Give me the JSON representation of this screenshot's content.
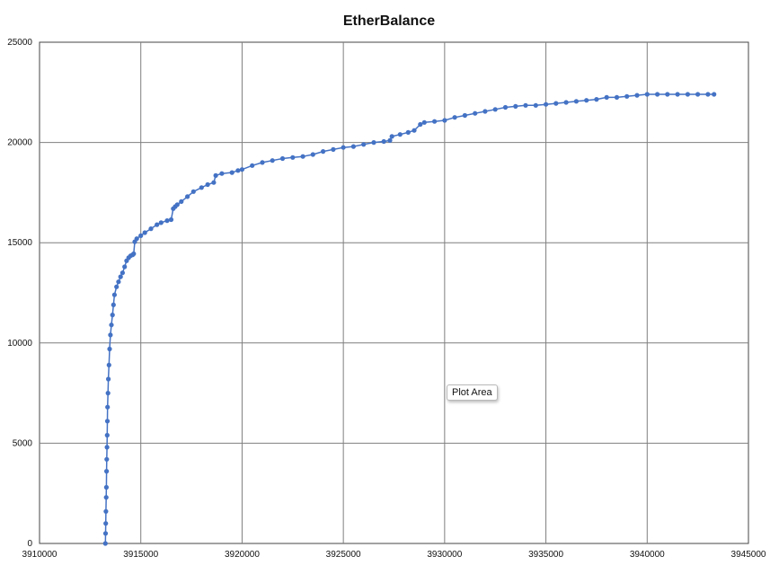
{
  "chart_data": {
    "type": "line",
    "title": "EtherBalance",
    "xlabel": "",
    "ylabel": "",
    "xlim": [
      3910000,
      3945000
    ],
    "ylim": [
      0,
      25000
    ],
    "x_ticks": [
      3910000,
      3915000,
      3920000,
      3925000,
      3930000,
      3935000,
      3940000,
      3945000
    ],
    "y_ticks": [
      0,
      5000,
      10000,
      15000,
      20000,
      25000
    ],
    "x_tick_labels": [
      "3910000",
      "3915000",
      "3920000",
      "3925000",
      "3930000",
      "3935000",
      "3940000",
      "3945000"
    ],
    "y_tick_labels": [
      "0",
      "5000",
      "10000",
      "15000",
      "20000",
      "25000"
    ],
    "grid": true,
    "legend": "none",
    "series_color": "#4472C4",
    "series": [
      {
        "x": [
          3913250,
          3913260,
          3913270,
          3913280,
          3913290,
          3913300,
          3913310,
          3913320,
          3913330,
          3913340,
          3913350,
          3913360,
          3913380,
          3913400,
          3913430,
          3913460,
          3913500,
          3913550,
          3913600,
          3913650,
          3913700,
          3913800,
          3913900,
          3914000,
          3914100,
          3914200,
          3914300,
          3914400,
          3914500,
          3914600,
          3914650,
          3914700,
          3914800,
          3915000,
          3915200,
          3915500,
          3915800,
          3916000,
          3916300,
          3916500,
          3916600,
          3916700,
          3916800,
          3917000,
          3917300,
          3917600,
          3918000,
          3918300,
          3918600,
          3918700,
          3919000,
          3919500,
          3919800,
          3920000,
          3920500,
          3921000,
          3921500,
          3922000,
          3922500,
          3923000,
          3923500,
          3924000,
          3924500,
          3925000,
          3925500,
          3926000,
          3926500,
          3927000,
          3927300,
          3927400,
          3927800,
          3928200,
          3928500,
          3928800,
          3929000,
          3929500,
          3930000,
          3930500,
          3931000,
          3931500,
          3932000,
          3932500,
          3933000,
          3933500,
          3934000,
          3934500,
          3935000,
          3935500,
          3936000,
          3936500,
          3937000,
          3937500,
          3938000,
          3938500,
          3939000,
          3939500,
          3940000,
          3940500,
          3941000,
          3941500,
          3942000,
          3942500,
          3943000,
          3943300
        ],
        "y": [
          0,
          500,
          1000,
          1600,
          2300,
          2800,
          3600,
          4200,
          4800,
          5400,
          6100,
          6800,
          7500,
          8200,
          8900,
          9700,
          10400,
          10900,
          11400,
          11900,
          12400,
          12800,
          13050,
          13300,
          13500,
          13800,
          14100,
          14250,
          14350,
          14400,
          14450,
          15050,
          15200,
          15350,
          15500,
          15700,
          15900,
          16000,
          16100,
          16150,
          16700,
          16800,
          16900,
          17050,
          17300,
          17550,
          17750,
          17900,
          18000,
          18350,
          18450,
          18500,
          18600,
          18650,
          18850,
          19000,
          19100,
          19200,
          19250,
          19300,
          19400,
          19550,
          19650,
          19750,
          19800,
          19900,
          20000,
          20050,
          20100,
          20300,
          20400,
          20500,
          20600,
          20900,
          21000,
          21050,
          21100,
          21250,
          21350,
          21450,
          21550,
          21650,
          21750,
          21800,
          21850,
          21850,
          21900,
          21950,
          22000,
          22050,
          22100,
          22150,
          22250,
          22250,
          22300,
          22350,
          22400,
          22400,
          22400,
          22400,
          22400,
          22400,
          22400,
          22400
        ]
      }
    ]
  },
  "ui": {
    "tooltip_text": "Plot Area"
  }
}
